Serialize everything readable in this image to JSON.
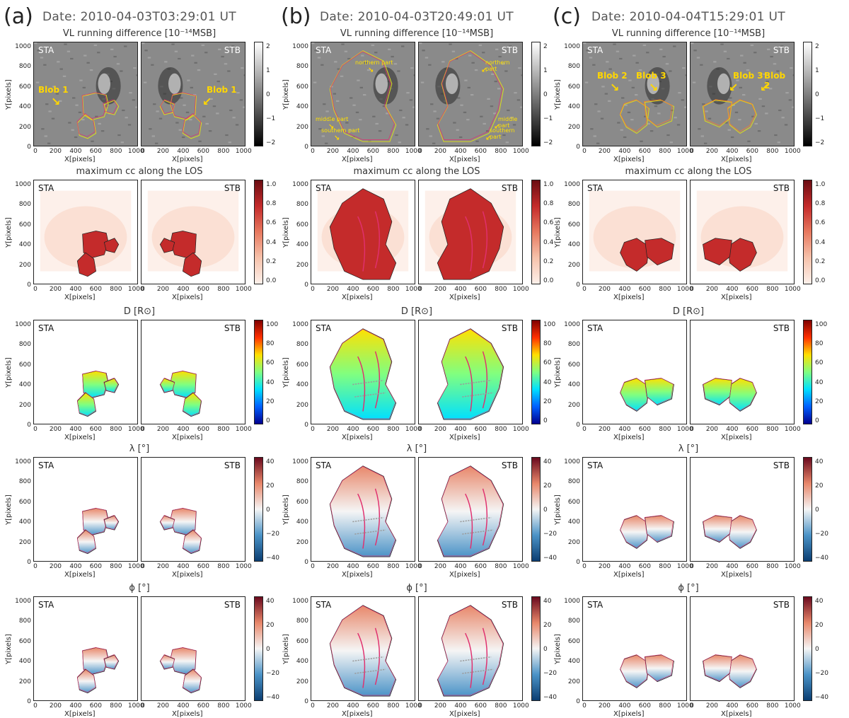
{
  "columns": [
    {
      "label": "(a)",
      "date": "Date: 2010-04-03T03:29:01 UT",
      "annotations": {
        "sta": [
          "Blob 1"
        ],
        "stb": [
          "Blob 1"
        ]
      }
    },
    {
      "label": "(b)",
      "date": "Date: 2010-04-03T20:49:01 UT",
      "annotations": {
        "sta": [
          "northern part",
          "middle part",
          "southern part"
        ],
        "stb": [
          "northern part",
          "middle part",
          "southern part"
        ]
      }
    },
    {
      "label": "(c)",
      "date": "Date: 2010-04-04T15:29:01 UT",
      "annotations": {
        "sta": [
          "Blob 2",
          "Blob 3"
        ],
        "stb": [
          "Blob 3",
          "Blob 2"
        ]
      }
    }
  ],
  "rows": [
    {
      "title": "VL running difference [10⁻¹⁴MSB]",
      "colorbar": "gray",
      "ticks": [
        "2",
        "1",
        "0",
        "−1",
        "−2"
      ]
    },
    {
      "title": "maximum cc along the LOS",
      "colorbar": "reds",
      "ticks": [
        "1.0",
        "0.8",
        "0.6",
        "0.4",
        "0.2",
        "0.0"
      ]
    },
    {
      "title": "D [R⊙]",
      "colorbar": "jet",
      "ticks": [
        "100",
        "80",
        "60",
        "40",
        "20",
        "0"
      ]
    },
    {
      "title": "λ [°]",
      "colorbar": "rdbu",
      "ticks": [
        "40",
        "20",
        "0",
        "−20",
        "−40"
      ]
    },
    {
      "title": "ϕ [°]",
      "colorbar": "rdbu",
      "ticks": [
        "40",
        "20",
        "0",
        "−20",
        "−40"
      ]
    }
  ],
  "spacecraft": {
    "a": "STA",
    "b": "STB"
  },
  "axes": {
    "xlabel": "X[pixels]",
    "ylabel": "Y[pixels]",
    "xticks": [
      "0",
      "200",
      "400",
      "600",
      "800",
      "1000"
    ],
    "yticks": [
      "1000",
      "800",
      "600",
      "400",
      "200",
      "0"
    ]
  },
  "colors": {
    "reds": [
      "#fdf0ea",
      "#f6c2ab",
      "#e7795f",
      "#c42b2b",
      "#6b0d12"
    ],
    "jet": [
      "#00008f",
      "#0060ff",
      "#00e0ff",
      "#80ff80",
      "#ffe000",
      "#ff3000",
      "#800000"
    ],
    "rdbu": [
      "#0b3e72",
      "#4b93c7",
      "#f5f5f5",
      "#e8876a",
      "#6a0a1e"
    ],
    "gray": [
      "#000000",
      "#ffffff"
    ],
    "annotation": "#ffd600",
    "contour_pink": "#e0306e",
    "contour_green": "#3a8a2a",
    "contour_yellow": "#d8d820"
  }
}
